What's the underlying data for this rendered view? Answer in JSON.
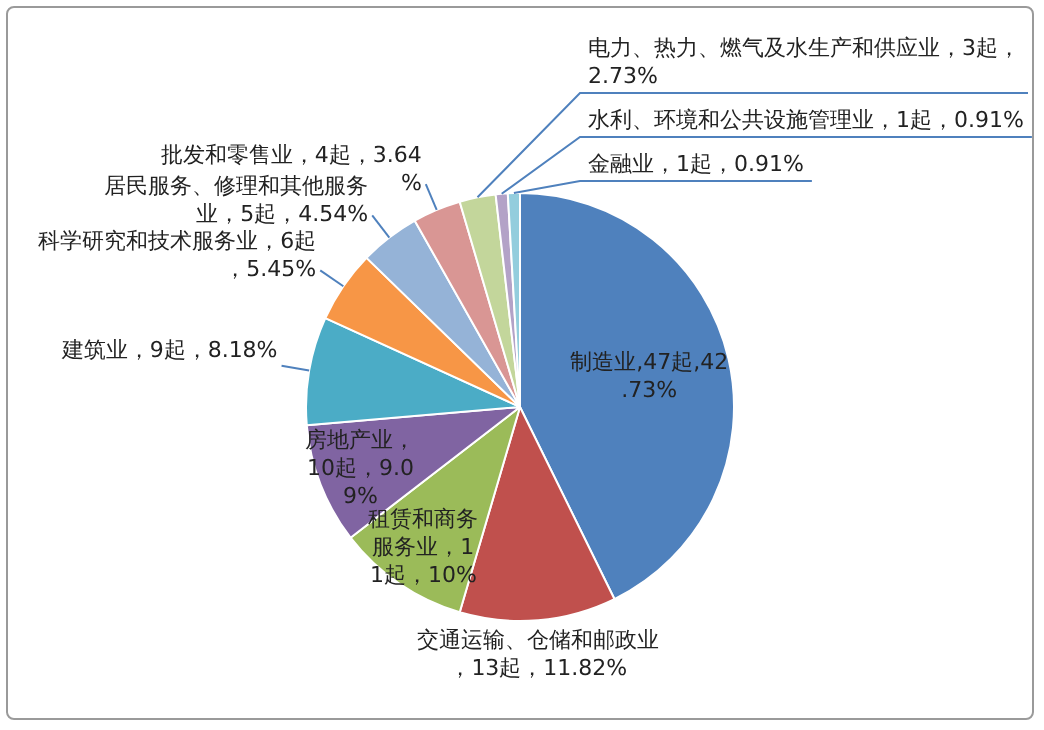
{
  "chart_data": {
    "type": "pie",
    "categories": [
      "制造业",
      "交通运输、仓储和邮政业",
      "租赁和商务服务业",
      "房地产业",
      "建筑业",
      "科学研究和技术服务业",
      "居民服务、修理和其他服务业",
      "批发和零售业",
      "电力、热力、燃气及水生产和供应业",
      "水利、环境和公共设施管理业",
      "金融业"
    ],
    "values": [
      47,
      13,
      11,
      10,
      9,
      6,
      5,
      4,
      3,
      1,
      1
    ],
    "value_labels": [
      ",47起,42.73%",
      "，13起，11.82%",
      "，11起，10%",
      "，10起，9.09%",
      "，9起，8.18%",
      "，6起，5.45%",
      "，5起，4.54%",
      "，4起，3.64%",
      "，3起，2.73%",
      "，1起，0.91%",
      "，1起，0.91%"
    ],
    "colors": [
      "#4f81bd",
      "#c0504d",
      "#9bbb59",
      "#8064a2",
      "#4bacc6",
      "#f79646",
      "#95b3d7",
      "#d99694",
      "#c3d69b",
      "#b3a2c7",
      "#93cddd"
    ],
    "legend": false
  }
}
